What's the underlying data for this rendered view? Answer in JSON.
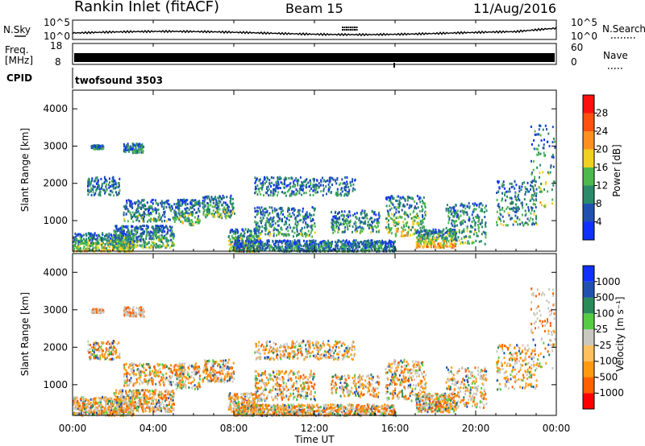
{
  "header": {
    "station": "Rankin Inlet (fitACF)",
    "beam": "Beam 15",
    "date": "11/Aug/2016"
  },
  "noise_panel": {
    "left_label": "N.Sky",
    "right_label": "N.Search",
    "y_ticks": [
      "10^5",
      "10^0"
    ],
    "right_ticks": [
      "10^5",
      "10^0"
    ]
  },
  "freq_panel": {
    "left_label_line1": "Freq.",
    "left_label_line2": "[MHz]",
    "right_label": "Nave",
    "y_ticks": [
      "18",
      "8"
    ],
    "right_ticks": [
      "60",
      "0"
    ]
  },
  "cpid_panel": {
    "label": "CPID",
    "value": "twofsound 3503"
  },
  "x_axis": {
    "label": "Time UT",
    "ticks": [
      "00:00",
      "04:00",
      "08:00",
      "12:00",
      "16:00",
      "20:00",
      "00:00"
    ]
  },
  "colors": {
    "power_scale": [
      "#1030ff",
      "#2050b0",
      "#2a8a6a",
      "#4db84d",
      "#f0d020",
      "#ff9020",
      "#ff5010",
      "#ff1010"
    ],
    "velocity_scale": [
      "#ff0000",
      "#ff6000",
      "#ff9a10",
      "#ffc060",
      "#c8c8c0",
      "#55cc44",
      "#2a8a5a",
      "#2050b0",
      "#1030ff"
    ]
  },
  "chart_data": [
    {
      "type": "heatmap",
      "name": "power",
      "ylabel": "Slant Range [km]",
      "xlabel": "",
      "ylim": [
        180,
        4500
      ],
      "xlim": [
        0,
        24
      ],
      "y_ticks": [
        1000,
        2000,
        3000,
        4000
      ],
      "colorbar_label": "Power [dB]",
      "colorbar_ticks": [
        "4",
        "8",
        "12",
        "16",
        "20",
        "24",
        "28"
      ]
    },
    {
      "type": "heatmap",
      "name": "velocity",
      "ylabel": "Slant Range [km]",
      "xlabel": "Time UT",
      "ylim": [
        180,
        4500
      ],
      "xlim": [
        0,
        24
      ],
      "y_ticks": [
        1000,
        2000,
        3000,
        4000
      ],
      "colorbar_label": "Velocity [m s⁻¹]",
      "colorbar_ticks": [
        "-1000",
        "-500",
        "-100",
        "-25",
        "25",
        "100",
        "500",
        "1000"
      ]
    }
  ]
}
